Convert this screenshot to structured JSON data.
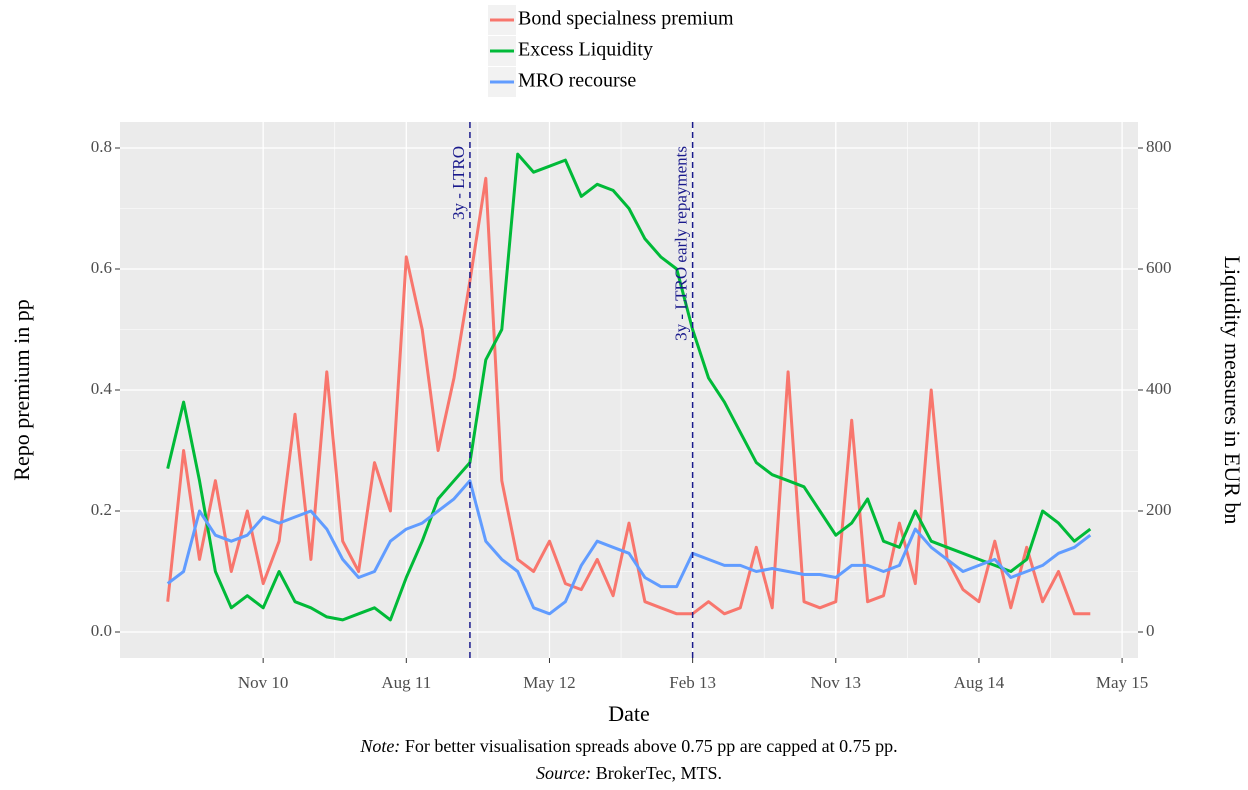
{
  "chart_data": {
    "type": "line",
    "x": [
      "2010-05",
      "2010-06",
      "2010-07",
      "2010-08",
      "2010-09",
      "2010-10",
      "2010-11",
      "2010-12",
      "2011-01",
      "2011-02",
      "2011-03",
      "2011-04",
      "2011-05",
      "2011-06",
      "2011-07",
      "2011-08",
      "2011-09",
      "2011-10",
      "2011-11",
      "2011-12",
      "2012-01",
      "2012-02",
      "2012-03",
      "2012-04",
      "2012-05",
      "2012-06",
      "2012-07",
      "2012-08",
      "2012-09",
      "2012-10",
      "2012-11",
      "2012-12",
      "2013-01",
      "2013-02",
      "2013-03",
      "2013-04",
      "2013-05",
      "2013-06",
      "2013-07",
      "2013-08",
      "2013-09",
      "2013-10",
      "2013-11",
      "2013-12",
      "2014-01",
      "2014-02",
      "2014-03",
      "2014-04",
      "2014-05",
      "2014-06",
      "2014-07",
      "2014-08",
      "2014-09",
      "2014-10",
      "2014-11",
      "2014-12",
      "2015-01",
      "2015-02",
      "2015-03"
    ],
    "series": [
      {
        "name": "Bond specialness premium",
        "color": "#f8766d",
        "values": [
          0.05,
          0.3,
          0.12,
          0.25,
          0.1,
          0.2,
          0.08,
          0.15,
          0.36,
          0.12,
          0.43,
          0.15,
          0.1,
          0.28,
          0.2,
          0.62,
          0.5,
          0.3,
          0.42,
          0.58,
          0.75,
          0.25,
          0.12,
          0.1,
          0.15,
          0.08,
          0.07,
          0.12,
          0.06,
          0.18,
          0.05,
          0.04,
          0.03,
          0.03,
          0.05,
          0.03,
          0.04,
          0.14,
          0.04,
          0.43,
          0.05,
          0.04,
          0.05,
          0.35,
          0.05,
          0.06,
          0.18,
          0.08,
          0.4,
          0.12,
          0.07,
          0.05,
          0.15,
          0.04,
          0.14,
          0.05,
          0.1,
          0.03,
          0.03
        ]
      },
      {
        "name": "Excess Liquidity",
        "color": "#00ba38",
        "axis": "y2",
        "values": [
          270,
          380,
          250,
          100,
          40,
          60,
          40,
          100,
          50,
          40,
          25,
          20,
          30,
          40,
          20,
          90,
          150,
          220,
          250,
          280,
          450,
          500,
          790,
          760,
          770,
          780,
          720,
          740,
          730,
          700,
          650,
          620,
          600,
          500,
          420,
          380,
          330,
          280,
          260,
          250,
          240,
          200,
          160,
          180,
          220,
          150,
          140,
          200,
          150,
          140,
          130,
          120,
          110,
          100,
          120,
          200,
          180,
          150,
          170
        ]
      },
      {
        "name": "MRO recourse",
        "color": "#619cff",
        "axis": "y2",
        "values": [
          80,
          100,
          200,
          160,
          150,
          160,
          190,
          180,
          190,
          200,
          170,
          120,
          90,
          100,
          150,
          170,
          180,
          200,
          220,
          250,
          150,
          120,
          100,
          40,
          30,
          50,
          110,
          150,
          140,
          130,
          90,
          75,
          75,
          130,
          120,
          110,
          110,
          100,
          105,
          100,
          95,
          95,
          90,
          110,
          110,
          100,
          110,
          170,
          140,
          120,
          100,
          110,
          120,
          90,
          100,
          110,
          130,
          140,
          160
        ]
      }
    ],
    "xlim": [
      "2010-02",
      "2015-06"
    ],
    "xticks": [
      {
        "value": "2010-11",
        "label": "Nov 10"
      },
      {
        "value": "2011-08",
        "label": "Aug 11"
      },
      {
        "value": "2012-05",
        "label": "May 12"
      },
      {
        "value": "2013-02",
        "label": "Feb 13"
      },
      {
        "value": "2013-11",
        "label": "Nov 13"
      },
      {
        "value": "2014-08",
        "label": "Aug 14"
      },
      {
        "value": "2015-05",
        "label": "May 15"
      }
    ],
    "ylim": [
      -0.043,
      0.843
    ],
    "yticks": [
      {
        "value": 0,
        "label": "0.0"
      },
      0.2,
      0.4,
      0.6,
      0.8
    ],
    "y2lim": [
      -43,
      843
    ],
    "y2ticks": [
      0,
      200,
      400,
      600,
      800
    ],
    "grid": true,
    "x_label": "Date",
    "y_label": "Repo premium in pp",
    "y2_label": "Liquidity measures in EUR bn",
    "vlines": [
      {
        "x": "2011-12",
        "label": "3y - LTRO",
        "color": "#1a1a8c"
      },
      {
        "x": "2013-02",
        "label": "3y - LTRO early repayments",
        "color": "#1a1a8c"
      }
    ],
    "note_label": "Note:",
    "note": "For better visualisation spreads above 0.75 pp are capped at 0.75 pp.",
    "source_label": "Source:",
    "source": "BrokerTec, MTS."
  }
}
